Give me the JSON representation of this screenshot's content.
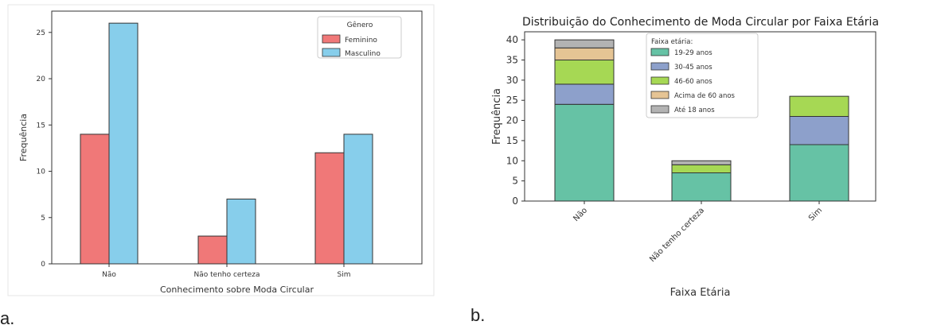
{
  "panel_labels": [
    "a.",
    "b."
  ],
  "chart_data": [
    {
      "type": "bar",
      "title": "",
      "xlabel": "Conhecimento sobre Moda Circular",
      "ylabel": "Frequência",
      "categories": [
        "Não",
        "Não tenho certeza",
        "Sim"
      ],
      "ylim": [
        0,
        27.3
      ],
      "yticks": [
        0,
        5,
        10,
        15,
        20,
        25
      ],
      "grid": false,
      "legend": {
        "title": "Gênero",
        "position": "top-right"
      },
      "series": [
        {
          "name": "Feminino",
          "color": "#f07878",
          "values": [
            14,
            3,
            12
          ]
        },
        {
          "name": "Masculino",
          "color": "#87ceeb",
          "values": [
            26,
            7,
            14
          ]
        }
      ]
    },
    {
      "type": "bar",
      "stacked": true,
      "title": "Distribuição do Conhecimento de Moda Circular por Faixa Etária",
      "xlabel": "Faixa Etária",
      "ylabel": "Frequência",
      "categories": [
        "Não",
        "Não tenho certeza",
        "Sim"
      ],
      "ylim": [
        0,
        42
      ],
      "yticks": [
        0,
        5,
        10,
        15,
        20,
        25,
        30,
        35,
        40
      ],
      "grid": false,
      "legend": {
        "title": "Faixa etária:",
        "position": "top-center"
      },
      "series": [
        {
          "name": "19-29 anos",
          "color": "#66c2a5",
          "values": [
            24,
            7,
            14
          ]
        },
        {
          "name": "30-45 anos",
          "color": "#8da0cb",
          "values": [
            5,
            0,
            7
          ]
        },
        {
          "name": "46-60 anos",
          "color": "#a6d854",
          "values": [
            6,
            2,
            5
          ]
        },
        {
          "name": "Acima de 60 anos",
          "color": "#e5c494",
          "values": [
            3,
            0,
            0
          ]
        },
        {
          "name": "Até 18 anos",
          "color": "#b3b3b3",
          "values": [
            2,
            1,
            0
          ]
        }
      ]
    }
  ]
}
